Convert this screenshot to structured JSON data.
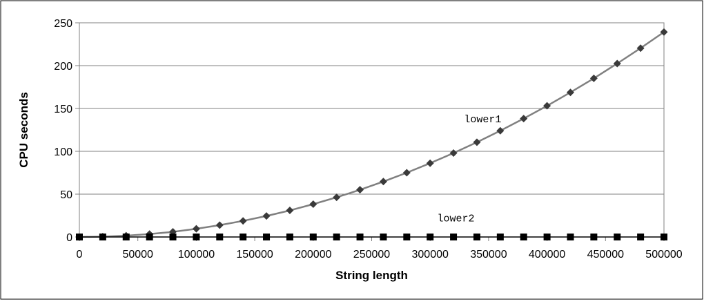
{
  "chart_data": {
    "type": "line",
    "xlabel": "String length",
    "ylabel": "CPU seconds",
    "xlim": [
      0,
      500000
    ],
    "ylim": [
      0,
      250
    ],
    "x_ticks": [
      0,
      50000,
      100000,
      150000,
      200000,
      250000,
      300000,
      350000,
      400000,
      450000,
      500000
    ],
    "y_ticks": [
      0,
      50,
      100,
      150,
      200,
      250
    ],
    "grid": "horizontal",
    "x": [
      0,
      20000,
      40000,
      60000,
      80000,
      100000,
      120000,
      140000,
      160000,
      180000,
      200000,
      220000,
      240000,
      260000,
      280000,
      300000,
      320000,
      340000,
      360000,
      380000,
      400000,
      420000,
      440000,
      460000,
      480000,
      500000
    ],
    "series": [
      {
        "name": "lower1",
        "color": "#808080",
        "marker": "diamond",
        "values": [
          0,
          0.4,
          1.5,
          3.4,
          6.0,
          9.6,
          13.8,
          18.8,
          24.5,
          31.0,
          38.3,
          46.3,
          55.1,
          64.7,
          75.0,
          86.1,
          98.0,
          110.6,
          124.0,
          138.2,
          153.1,
          168.8,
          185.2,
          202.4,
          220.4,
          239.2
        ]
      },
      {
        "name": "lower2",
        "color": "#000000",
        "marker": "square",
        "values": [
          0,
          0,
          0,
          0,
          0,
          0,
          0,
          0,
          0,
          0,
          0,
          0,
          0,
          0,
          0,
          0,
          0,
          0,
          0,
          0,
          0,
          0,
          0,
          0,
          0,
          0
        ]
      }
    ],
    "annotations": [
      {
        "text": "lower1",
        "x": 345000,
        "y": 134
      },
      {
        "text": "lower2",
        "x": 322000,
        "y": 18
      }
    ]
  }
}
